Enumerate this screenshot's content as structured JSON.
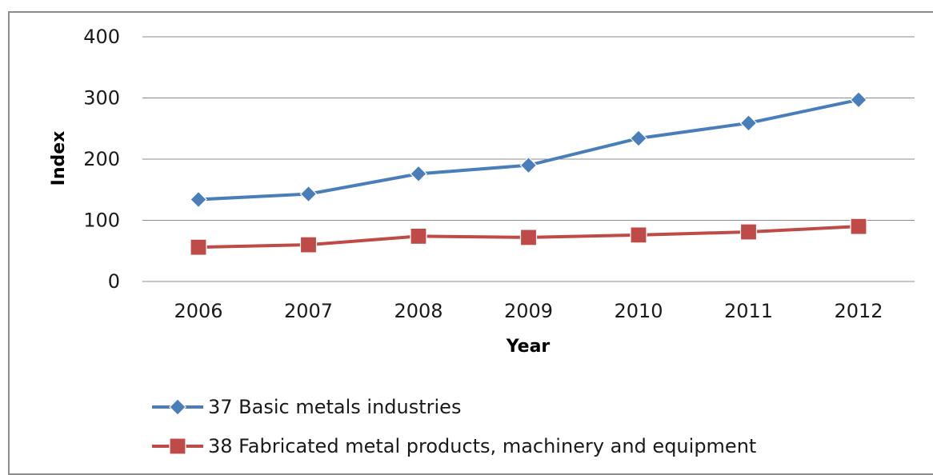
{
  "chart_data": {
    "type": "line",
    "title": "",
    "xlabel": "Year",
    "ylabel": "Index",
    "ylim": [
      0,
      400
    ],
    "yticks": [
      "0",
      "100",
      "200",
      "300",
      "400"
    ],
    "grid": true,
    "legend": "bottom",
    "categories": [
      "2006",
      "2007",
      "2008",
      "2009",
      "2010",
      "2011",
      "2012"
    ],
    "series": [
      {
        "name": "37 Basic metals industries",
        "color": "#4a7ebb",
        "marker": "diamond",
        "values": [
          134,
          143,
          176,
          190,
          234,
          259,
          297
        ]
      },
      {
        "name": "38 Fabricated metal products, machinery and equipment",
        "color": "#be4b48",
        "marker": "square",
        "values": [
          56,
          60,
          74,
          72,
          76,
          81,
          90
        ]
      }
    ]
  }
}
